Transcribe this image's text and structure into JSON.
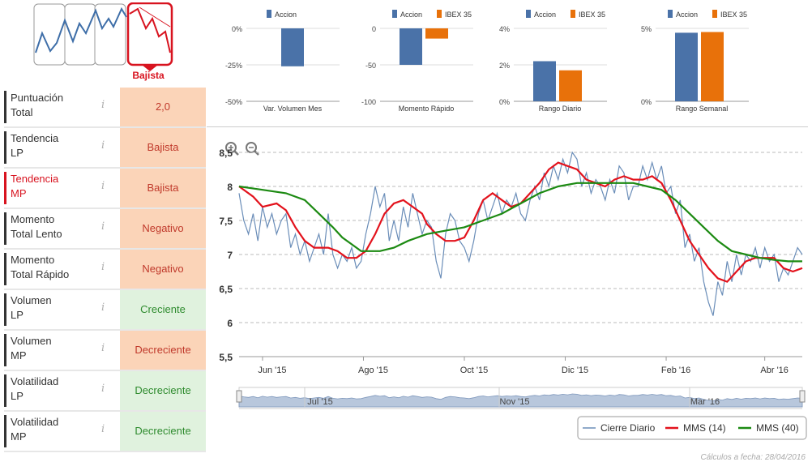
{
  "trend_indicator": {
    "label": "Bajista",
    "color": "#d8131f"
  },
  "metrics": [
    {
      "label_line1": "Puntuación",
      "label_line2": "Total",
      "value": "2,0",
      "tone": "neg",
      "highlight": false
    },
    {
      "label_line1": "Tendencia",
      "label_line2": "LP",
      "value": "Bajista",
      "tone": "neg",
      "highlight": false
    },
    {
      "label_line1": "Tendencia",
      "label_line2": "MP",
      "value": "Bajista",
      "tone": "neg",
      "highlight": true
    },
    {
      "label_line1": "Momento",
      "label_line2": "Total Lento",
      "value": "Negativo",
      "tone": "neg",
      "highlight": false
    },
    {
      "label_line1": "Momento",
      "label_line2": "Total Rápido",
      "value": "Negativo",
      "tone": "neg",
      "highlight": false
    },
    {
      "label_line1": "Volumen",
      "label_line2": "LP",
      "value": "Creciente",
      "tone": "pos",
      "highlight": false
    },
    {
      "label_line1": "Volumen",
      "label_line2": "MP",
      "value": "Decreciente",
      "tone": "neg",
      "highlight": false
    },
    {
      "label_line1": "Volatilidad",
      "label_line2": "LP",
      "value": "Decreciente",
      "tone": "pos",
      "highlight": false
    },
    {
      "label_line1": "Volatilidad",
      "label_line2": "MP",
      "value": "Decreciente",
      "tone": "pos",
      "highlight": false
    }
  ],
  "info_icon_glyph": "i",
  "colors": {
    "accion": "#4a72a8",
    "ibex": "#e8710a",
    "daily": "#6a8db8",
    "mms14": "#e3121c",
    "mms40": "#1c8a12"
  },
  "chart_data": [
    {
      "type": "bar",
      "title": "Var. Volumen Mes",
      "categories": [
        "Var. Volumen Mes"
      ],
      "series": [
        {
          "name": "Accion",
          "values": [
            -26
          ]
        }
      ],
      "yticks": [
        "0%",
        "-25%",
        "-50%"
      ],
      "ylim": [
        -50,
        0
      ]
    },
    {
      "type": "bar",
      "title": "Momento Rápido",
      "categories": [
        "Momento Rápido"
      ],
      "series": [
        {
          "name": "Accion",
          "values": [
            -50
          ]
        },
        {
          "name": "IBEX 35",
          "values": [
            -14
          ]
        }
      ],
      "yticks": [
        "0",
        "-50",
        "-100"
      ],
      "ylim": [
        -100,
        0
      ]
    },
    {
      "type": "bar",
      "title": "Rango Diario",
      "categories": [
        "Rango Diario"
      ],
      "series": [
        {
          "name": "Accion",
          "values": [
            2.2
          ]
        },
        {
          "name": "IBEX 35",
          "values": [
            1.7
          ]
        }
      ],
      "yticks": [
        "4%",
        "2%",
        "0%"
      ],
      "ylim": [
        0,
        4
      ]
    },
    {
      "type": "bar",
      "title": "Rango Semanal",
      "categories": [
        "Rango Semanal"
      ],
      "series": [
        {
          "name": "Accion",
          "values": [
            4.7
          ]
        },
        {
          "name": "IBEX 35",
          "values": [
            4.75
          ]
        }
      ],
      "yticks": [
        "5%",
        "0%"
      ],
      "ylim": [
        0,
        5
      ]
    },
    {
      "type": "line",
      "ylim": [
        5.5,
        8.5
      ],
      "yticks": [
        "8,5",
        "8",
        "7,5",
        "7",
        "6,5",
        "6",
        "5,5"
      ],
      "xticks": [
        "Jun '15",
        "Ago '15",
        "Oct '15",
        "Dic '15",
        "Feb '16",
        "Abr '16"
      ],
      "navigator_ticks": [
        "Jul '15",
        "Nov '15",
        "Mar '16"
      ],
      "legend": [
        "Cierre Diario",
        "MMS (14)",
        "MMS (40)"
      ],
      "x_index_range": [
        0,
        240
      ],
      "series": [
        {
          "name": "Cierre Diario",
          "points": [
            [
              0,
              7.9
            ],
            [
              2,
              7.5
            ],
            [
              4,
              7.3
            ],
            [
              6,
              7.6
            ],
            [
              8,
              7.2
            ],
            [
              10,
              7.7
            ],
            [
              12,
              7.4
            ],
            [
              14,
              7.6
            ],
            [
              16,
              7.3
            ],
            [
              18,
              7.5
            ],
            [
              20,
              7.6
            ],
            [
              22,
              7.1
            ],
            [
              24,
              7.3
            ],
            [
              26,
              7.0
            ],
            [
              28,
              7.2
            ],
            [
              30,
              6.9
            ],
            [
              32,
              7.1
            ],
            [
              34,
              7.3
            ],
            [
              36,
              7.0
            ],
            [
              38,
              7.6
            ],
            [
              40,
              7.0
            ],
            [
              42,
              6.8
            ],
            [
              44,
              7.0
            ],
            [
              46,
              6.9
            ],
            [
              48,
              7.1
            ],
            [
              50,
              6.8
            ],
            [
              52,
              6.9
            ],
            [
              54,
              7.3
            ],
            [
              56,
              7.6
            ],
            [
              58,
              8.0
            ],
            [
              60,
              7.7
            ],
            [
              62,
              7.9
            ],
            [
              64,
              7.2
            ],
            [
              66,
              7.5
            ],
            [
              68,
              7.2
            ],
            [
              70,
              7.7
            ],
            [
              72,
              7.4
            ],
            [
              74,
              7.9
            ],
            [
              76,
              7.6
            ],
            [
              78,
              7.3
            ],
            [
              80,
              7.5
            ],
            [
              82,
              7.4
            ],
            [
              84,
              6.9
            ],
            [
              86,
              6.65
            ],
            [
              88,
              7.3
            ],
            [
              90,
              7.6
            ],
            [
              92,
              7.5
            ],
            [
              94,
              7.2
            ],
            [
              96,
              7.1
            ],
            [
              98,
              6.9
            ],
            [
              100,
              7.2
            ],
            [
              102,
              7.6
            ],
            [
              104,
              7.8
            ],
            [
              106,
              7.5
            ],
            [
              108,
              7.7
            ],
            [
              110,
              7.9
            ],
            [
              112,
              7.6
            ],
            [
              114,
              7.8
            ],
            [
              116,
              7.7
            ],
            [
              118,
              7.9
            ],
            [
              120,
              7.6
            ],
            [
              122,
              7.5
            ],
            [
              124,
              7.8
            ],
            [
              126,
              8.0
            ],
            [
              128,
              7.8
            ],
            [
              130,
              8.2
            ],
            [
              132,
              8.0
            ],
            [
              134,
              8.3
            ],
            [
              136,
              8.1
            ],
            [
              138,
              8.4
            ],
            [
              140,
              8.2
            ],
            [
              142,
              8.5
            ],
            [
              144,
              8.4
            ],
            [
              146,
              8.0
            ],
            [
              148,
              8.2
            ],
            [
              150,
              7.9
            ],
            [
              152,
              8.1
            ],
            [
              154,
              8.0
            ],
            [
              156,
              7.8
            ],
            [
              158,
              8.1
            ],
            [
              160,
              7.9
            ],
            [
              162,
              8.3
            ],
            [
              164,
              8.2
            ],
            [
              166,
              7.8
            ],
            [
              168,
              8.0
            ],
            [
              170,
              8.0
            ],
            [
              172,
              8.3
            ],
            [
              174,
              8.1
            ],
            [
              176,
              8.35
            ],
            [
              178,
              8.1
            ],
            [
              180,
              8.3
            ],
            [
              182,
              7.9
            ],
            [
              184,
              8.0
            ],
            [
              186,
              7.6
            ],
            [
              188,
              7.8
            ],
            [
              190,
              7.1
            ],
            [
              192,
              7.3
            ],
            [
              194,
              6.9
            ],
            [
              196,
              7.1
            ],
            [
              198,
              6.6
            ],
            [
              200,
              6.3
            ],
            [
              202,
              6.1
            ],
            [
              204,
              6.6
            ],
            [
              206,
              6.4
            ],
            [
              208,
              6.9
            ],
            [
              210,
              6.6
            ],
            [
              212,
              7.0
            ],
            [
              214,
              6.7
            ],
            [
              216,
              7.0
            ],
            [
              218,
              6.9
            ],
            [
              220,
              7.1
            ],
            [
              222,
              6.8
            ],
            [
              224,
              7.1
            ],
            [
              226,
              6.9
            ],
            [
              228,
              7.0
            ],
            [
              230,
              6.6
            ],
            [
              232,
              6.8
            ],
            [
              234,
              6.7
            ],
            [
              236,
              6.9
            ],
            [
              238,
              7.1
            ],
            [
              240,
              7.0
            ]
          ]
        },
        {
          "name": "MMS (14)",
          "points": [
            [
              0,
              8.0
            ],
            [
              6,
              7.85
            ],
            [
              10,
              7.7
            ],
            [
              16,
              7.75
            ],
            [
              20,
              7.65
            ],
            [
              24,
              7.4
            ],
            [
              28,
              7.2
            ],
            [
              32,
              7.1
            ],
            [
              38,
              7.1
            ],
            [
              42,
              7.05
            ],
            [
              46,
              6.95
            ],
            [
              50,
              6.95
            ],
            [
              54,
              7.05
            ],
            [
              58,
              7.3
            ],
            [
              62,
              7.6
            ],
            [
              66,
              7.75
            ],
            [
              70,
              7.8
            ],
            [
              74,
              7.7
            ],
            [
              78,
              7.6
            ],
            [
              80,
              7.45
            ],
            [
              84,
              7.3
            ],
            [
              88,
              7.2
            ],
            [
              92,
              7.2
            ],
            [
              96,
              7.25
            ],
            [
              100,
              7.5
            ],
            [
              104,
              7.8
            ],
            [
              108,
              7.9
            ],
            [
              112,
              7.8
            ],
            [
              116,
              7.7
            ],
            [
              120,
              7.75
            ],
            [
              124,
              7.9
            ],
            [
              128,
              8.05
            ],
            [
              132,
              8.25
            ],
            [
              136,
              8.35
            ],
            [
              140,
              8.3
            ],
            [
              144,
              8.25
            ],
            [
              148,
              8.1
            ],
            [
              152,
              8.05
            ],
            [
              156,
              8.0
            ],
            [
              160,
              8.1
            ],
            [
              164,
              8.15
            ],
            [
              168,
              8.1
            ],
            [
              172,
              8.1
            ],
            [
              176,
              8.15
            ],
            [
              180,
              8.05
            ],
            [
              184,
              7.8
            ],
            [
              188,
              7.5
            ],
            [
              192,
              7.2
            ],
            [
              196,
              7.0
            ],
            [
              200,
              6.8
            ],
            [
              204,
              6.65
            ],
            [
              208,
              6.6
            ],
            [
              212,
              6.75
            ],
            [
              216,
              6.9
            ],
            [
              220,
              6.95
            ],
            [
              224,
              6.95
            ],
            [
              228,
              6.95
            ],
            [
              232,
              6.8
            ],
            [
              236,
              6.75
            ],
            [
              240,
              6.8
            ]
          ]
        },
        {
          "name": "MMS (40)",
          "points": [
            [
              0,
              8.0
            ],
            [
              10,
              7.95
            ],
            [
              20,
              7.9
            ],
            [
              28,
              7.8
            ],
            [
              34,
              7.6
            ],
            [
              40,
              7.4
            ],
            [
              44,
              7.25
            ],
            [
              48,
              7.15
            ],
            [
              52,
              7.05
            ],
            [
              56,
              7.05
            ],
            [
              60,
              7.05
            ],
            [
              66,
              7.1
            ],
            [
              72,
              7.2
            ],
            [
              80,
              7.3
            ],
            [
              88,
              7.35
            ],
            [
              96,
              7.4
            ],
            [
              104,
              7.5
            ],
            [
              112,
              7.6
            ],
            [
              120,
              7.75
            ],
            [
              128,
              7.9
            ],
            [
              136,
              8.0
            ],
            [
              144,
              8.05
            ],
            [
              152,
              8.05
            ],
            [
              160,
              8.05
            ],
            [
              168,
              8.05
            ],
            [
              174,
              8.0
            ],
            [
              180,
              7.95
            ],
            [
              186,
              7.8
            ],
            [
              192,
              7.6
            ],
            [
              198,
              7.4
            ],
            [
              204,
              7.2
            ],
            [
              210,
              7.05
            ],
            [
              216,
              7.0
            ],
            [
              222,
              6.95
            ],
            [
              228,
              6.92
            ],
            [
              234,
              6.9
            ],
            [
              240,
              6.9
            ]
          ]
        }
      ]
    }
  ],
  "footer": "Cálculos a fecha: 28/04/2016"
}
